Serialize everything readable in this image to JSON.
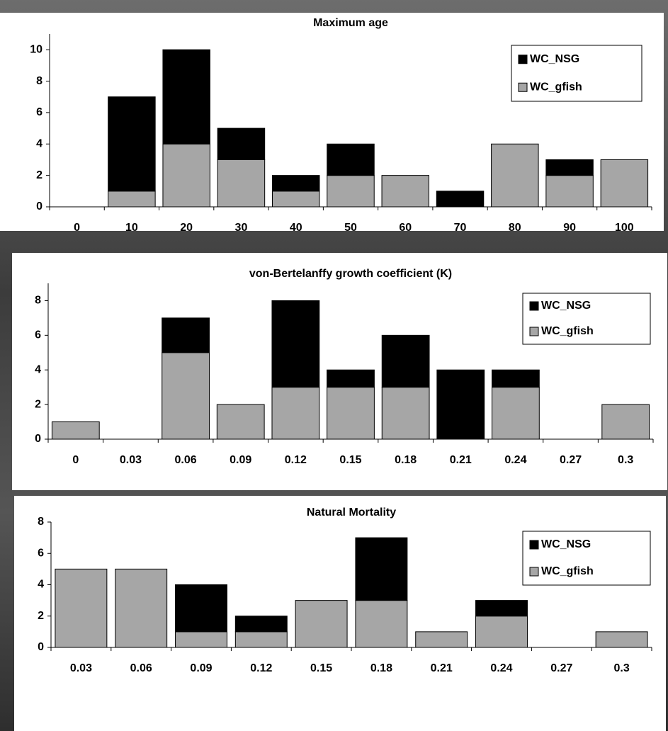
{
  "chart_data": [
    {
      "type": "bar",
      "stacked": true,
      "title": "Maximum age",
      "categories": [
        "0",
        "10",
        "20",
        "30",
        "40",
        "50",
        "60",
        "70",
        "80",
        "90",
        "100"
      ],
      "series": [
        {
          "name": "WC_NSG",
          "color": "#000000",
          "values": [
            0,
            6,
            6,
            2,
            1,
            2,
            0,
            1,
            0,
            1,
            0
          ]
        },
        {
          "name": "WC_gfish",
          "color": "#a6a6a6",
          "values": [
            0,
            1,
            4,
            3,
            1,
            2,
            2,
            0,
            4,
            2,
            3
          ]
        }
      ],
      "ylim": [
        0,
        11
      ],
      "yticks": [
        0,
        2,
        4,
        6,
        8,
        10
      ],
      "legend": "top-right"
    },
    {
      "type": "bar",
      "stacked": true,
      "title": "von-Bertelanffy growth coefficient (K)",
      "categories": [
        "0",
        "0.03",
        "0.06",
        "0.09",
        "0.12",
        "0.15",
        "0.18",
        "0.21",
        "0.24",
        "0.27",
        "0.3"
      ],
      "series": [
        {
          "name": "WC_NSG",
          "color": "#000000",
          "values": [
            0,
            0,
            2,
            0,
            5,
            1,
            3,
            4,
            1,
            0,
            0
          ]
        },
        {
          "name": "WC_gfish",
          "color": "#a6a6a6",
          "values": [
            1,
            0,
            5,
            2,
            3,
            3,
            3,
            0,
            3,
            0,
            2
          ]
        }
      ],
      "ylim": [
        0,
        9
      ],
      "yticks": [
        0,
        2,
        4,
        6,
        8
      ],
      "legend": "top-right"
    },
    {
      "type": "bar",
      "stacked": true,
      "title": "Natural Mortality",
      "categories": [
        "0.03",
        "0.06",
        "0.09",
        "0.12",
        "0.15",
        "0.18",
        "0.21",
        "0.24",
        "0.27",
        "0.3"
      ],
      "series": [
        {
          "name": "WC_NSG",
          "color": "#000000",
          "values": [
            0,
            0,
            3,
            1,
            0,
            4,
            0,
            1,
            0,
            0
          ]
        },
        {
          "name": "WC_gfish",
          "color": "#a6a6a6",
          "values": [
            5,
            5,
            1,
            1,
            3,
            3,
            1,
            2,
            0,
            1
          ]
        }
      ],
      "ylim": [
        0,
        8
      ],
      "yticks": [
        0,
        2,
        4,
        6,
        8
      ],
      "legend": "top-right"
    }
  ]
}
